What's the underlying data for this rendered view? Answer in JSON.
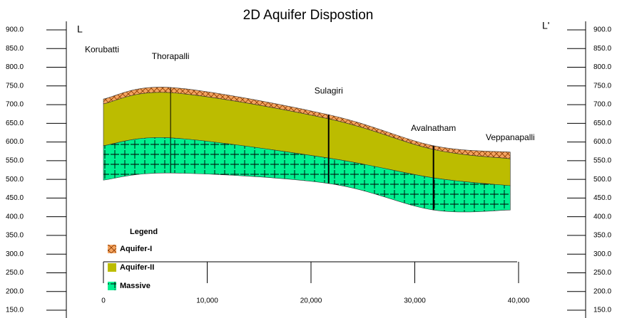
{
  "chart_data": {
    "type": "cross-section",
    "title": "2D Aquifer Dispostion",
    "section_start_label": "L",
    "section_end_label": "L'",
    "x": [
      0,
      6470,
      21700,
      31800,
      39200
    ],
    "locations": [
      "Korubatti",
      "Thorapalli",
      "Sulagiri",
      "Avalnatham",
      "Veppanapalli"
    ],
    "series": [
      {
        "name": "Aquifer-I",
        "color": "#f4a460",
        "values": [
          715,
          746,
          673,
          590,
          573
        ]
      },
      {
        "name": "Aquifer-II",
        "color": "#bcbc00",
        "values": [
          702,
          732,
          662,
          580,
          555
        ]
      },
      {
        "name": "Massive",
        "color": "#00f090",
        "values": [
          590,
          611,
          557,
          504,
          483
        ]
      }
    ],
    "base": [
      498,
      517,
      489,
      418,
      418
    ],
    "legend_title": "Legend",
    "xlim": [
      0,
      40000
    ],
    "xticks": [
      0,
      {
        "value": 10000,
        "label": "10,000"
      },
      {
        "value": 20000,
        "label": "20,000"
      },
      {
        "value": 30000,
        "label": "30,000"
      },
      {
        "value": 40000,
        "label": "40,000"
      }
    ],
    "ylim": [
      150,
      900
    ],
    "yticks": [
      {
        "value": 900,
        "label": "900.0"
      },
      {
        "value": 850,
        "label": "850.0"
      },
      {
        "value": 800,
        "label": "800.0"
      },
      {
        "value": 750,
        "label": "750.0"
      },
      {
        "value": 700,
        "label": "700.0"
      },
      {
        "value": 650,
        "label": "650.0"
      },
      {
        "value": 600,
        "label": "600.0"
      },
      {
        "value": 550,
        "label": "550.0"
      },
      {
        "value": 500,
        "label": "500.0"
      },
      {
        "value": 450,
        "label": "450.0"
      },
      {
        "value": 400,
        "label": "400.0"
      },
      {
        "value": 350,
        "label": "350.0"
      },
      {
        "value": 300,
        "label": "300.0"
      },
      {
        "value": 250,
        "label": "250.0"
      },
      {
        "value": 200,
        "label": "200.0"
      },
      {
        "value": 150,
        "label": "150.0"
      }
    ]
  }
}
